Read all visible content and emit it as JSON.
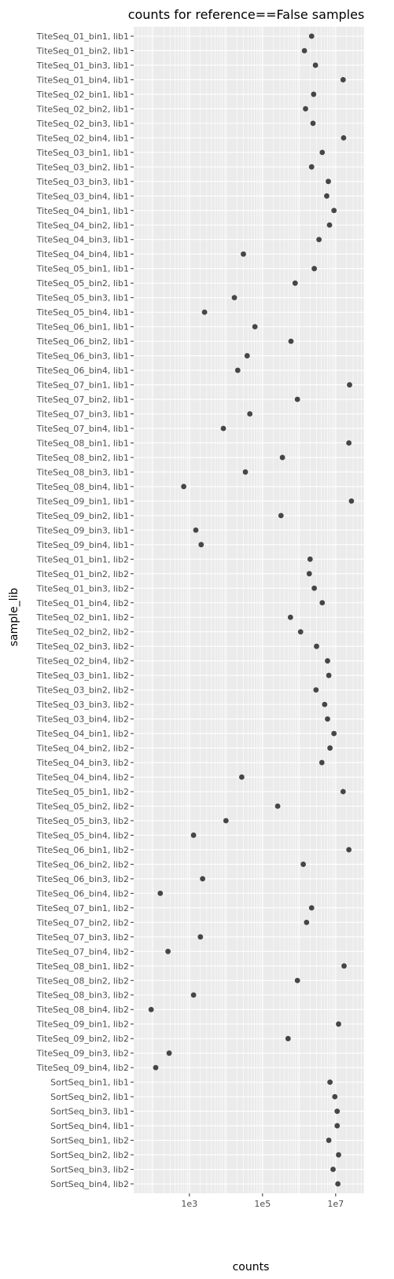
{
  "chart_data": {
    "type": "scatter",
    "title": "counts for reference==False samples",
    "xlabel": "counts",
    "ylabel": "sample_lib",
    "x_scale": "log10",
    "xlim": [
      30.0,
      60000000.0
    ],
    "x_ticks": [
      {
        "value": 1000,
        "label": "1e3"
      },
      {
        "value": 100000,
        "label": "1e5"
      },
      {
        "value": 10000000,
        "label": "1e7"
      }
    ],
    "grid": true,
    "point_color": "#333333",
    "panel_color": "#ebebeb",
    "points": [
      {
        "label": "TiteSeq_01_bin1, lib1",
        "x": 2200000
      },
      {
        "label": "TiteSeq_01_bin2, lib1",
        "x": 1400000
      },
      {
        "label": "TiteSeq_01_bin3, lib1",
        "x": 2800000
      },
      {
        "label": "TiteSeq_01_bin4, lib1",
        "x": 16000000
      },
      {
        "label": "TiteSeq_02_bin1, lib1",
        "x": 2500000
      },
      {
        "label": "TiteSeq_02_bin2, lib1",
        "x": 1500000
      },
      {
        "label": "TiteSeq_02_bin3, lib1",
        "x": 2400000
      },
      {
        "label": "TiteSeq_02_bin4, lib1",
        "x": 16500000
      },
      {
        "label": "TiteSeq_03_bin1, lib1",
        "x": 4300000
      },
      {
        "label": "TiteSeq_03_bin2, lib1",
        "x": 2200000
      },
      {
        "label": "TiteSeq_03_bin3, lib1",
        "x": 6300000
      },
      {
        "label": "TiteSeq_03_bin4, lib1",
        "x": 5700000
      },
      {
        "label": "TiteSeq_04_bin1, lib1",
        "x": 9000000
      },
      {
        "label": "TiteSeq_04_bin2, lib1",
        "x": 6800000
      },
      {
        "label": "TiteSeq_04_bin3, lib1",
        "x": 3500000
      },
      {
        "label": "TiteSeq_04_bin4, lib1",
        "x": 30000
      },
      {
        "label": "TiteSeq_05_bin1, lib1",
        "x": 2600000
      },
      {
        "label": "TiteSeq_05_bin2, lib1",
        "x": 780000
      },
      {
        "label": "TiteSeq_05_bin3, lib1",
        "x": 17000
      },
      {
        "label": "TiteSeq_05_bin4, lib1",
        "x": 2600
      },
      {
        "label": "TiteSeq_06_bin1, lib1",
        "x": 62000
      },
      {
        "label": "TiteSeq_06_bin2, lib1",
        "x": 600000
      },
      {
        "label": "TiteSeq_06_bin3, lib1",
        "x": 38000
      },
      {
        "label": "TiteSeq_06_bin4, lib1",
        "x": 21000
      },
      {
        "label": "TiteSeq_07_bin1, lib1",
        "x": 24000000
      },
      {
        "label": "TiteSeq_07_bin2, lib1",
        "x": 900000
      },
      {
        "label": "TiteSeq_07_bin3, lib1",
        "x": 45000
      },
      {
        "label": "TiteSeq_07_bin4, lib1",
        "x": 8500
      },
      {
        "label": "TiteSeq_08_bin1, lib1",
        "x": 23000000
      },
      {
        "label": "TiteSeq_08_bin2, lib1",
        "x": 350000
      },
      {
        "label": "TiteSeq_08_bin3, lib1",
        "x": 34000
      },
      {
        "label": "TiteSeq_08_bin4, lib1",
        "x": 700
      },
      {
        "label": "TiteSeq_09_bin1, lib1",
        "x": 27000000
      },
      {
        "label": "TiteSeq_09_bin2, lib1",
        "x": 320000
      },
      {
        "label": "TiteSeq_09_bin3, lib1",
        "x": 1500
      },
      {
        "label": "TiteSeq_09_bin4, lib1",
        "x": 2100
      },
      {
        "label": "TiteSeq_01_bin1, lib2",
        "x": 2000000
      },
      {
        "label": "TiteSeq_01_bin2, lib2",
        "x": 1900000
      },
      {
        "label": "TiteSeq_01_bin3, lib2",
        "x": 2600000
      },
      {
        "label": "TiteSeq_01_bin4, lib2",
        "x": 4300000
      },
      {
        "label": "TiteSeq_02_bin1, lib2",
        "x": 580000
      },
      {
        "label": "TiteSeq_02_bin2, lib2",
        "x": 1100000
      },
      {
        "label": "TiteSeq_02_bin3, lib2",
        "x": 3000000
      },
      {
        "label": "TiteSeq_02_bin4, lib2",
        "x": 6000000
      },
      {
        "label": "TiteSeq_03_bin1, lib2",
        "x": 6500000
      },
      {
        "label": "TiteSeq_03_bin2, lib2",
        "x": 2900000
      },
      {
        "label": "TiteSeq_03_bin3, lib2",
        "x": 5000000
      },
      {
        "label": "TiteSeq_03_bin4, lib2",
        "x": 6000000
      },
      {
        "label": "TiteSeq_04_bin1, lib2",
        "x": 9000000
      },
      {
        "label": "TiteSeq_04_bin2, lib2",
        "x": 7000000
      },
      {
        "label": "TiteSeq_04_bin3, lib2",
        "x": 4200000
      },
      {
        "label": "TiteSeq_04_bin4, lib2",
        "x": 27000
      },
      {
        "label": "TiteSeq_05_bin1, lib2",
        "x": 16000000
      },
      {
        "label": "TiteSeq_05_bin2, lib2",
        "x": 260000
      },
      {
        "label": "TiteSeq_05_bin3, lib2",
        "x": 10000
      },
      {
        "label": "TiteSeq_05_bin4, lib2",
        "x": 1300
      },
      {
        "label": "TiteSeq_06_bin1, lib2",
        "x": 23000000
      },
      {
        "label": "TiteSeq_06_bin2, lib2",
        "x": 1300000
      },
      {
        "label": "TiteSeq_06_bin3, lib2",
        "x": 2300
      },
      {
        "label": "TiteSeq_06_bin4, lib2",
        "x": 160
      },
      {
        "label": "TiteSeq_07_bin1, lib2",
        "x": 2200000
      },
      {
        "label": "TiteSeq_07_bin2, lib2",
        "x": 1600000
      },
      {
        "label": "TiteSeq_07_bin3, lib2",
        "x": 2000
      },
      {
        "label": "TiteSeq_07_bin4, lib2",
        "x": 260
      },
      {
        "label": "TiteSeq_08_bin1, lib2",
        "x": 17000000
      },
      {
        "label": "TiteSeq_08_bin2, lib2",
        "x": 900000
      },
      {
        "label": "TiteSeq_08_bin3, lib2",
        "x": 1300
      },
      {
        "label": "TiteSeq_08_bin4, lib2",
        "x": 90
      },
      {
        "label": "TiteSeq_09_bin1, lib2",
        "x": 12000000
      },
      {
        "label": "TiteSeq_09_bin2, lib2",
        "x": 500000
      },
      {
        "label": "TiteSeq_09_bin3, lib2",
        "x": 280
      },
      {
        "label": "TiteSeq_09_bin4, lib2",
        "x": 120
      },
      {
        "label": "SortSeq_bin1, lib1",
        "x": 7000000
      },
      {
        "label": "SortSeq_bin2, lib1",
        "x": 9500000
      },
      {
        "label": "SortSeq_bin3, lib1",
        "x": 11000000
      },
      {
        "label": "SortSeq_bin4, lib1",
        "x": 11000000
      },
      {
        "label": "SortSeq_bin1, lib2",
        "x": 6500000
      },
      {
        "label": "SortSeq_bin2, lib2",
        "x": 12000000
      },
      {
        "label": "SortSeq_bin3, lib2",
        "x": 8500000
      },
      {
        "label": "SortSeq_bin4, lib2",
        "x": 11500000
      }
    ]
  }
}
